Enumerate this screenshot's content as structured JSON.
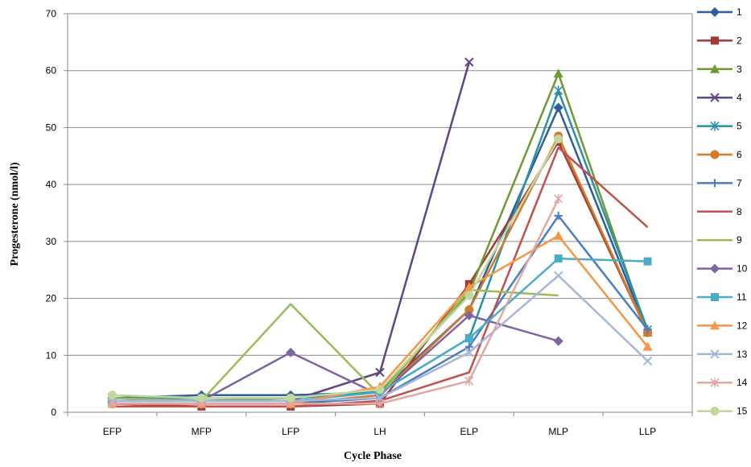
{
  "chart_data": {
    "type": "line",
    "title": "",
    "xlabel": "Cycle Phase",
    "ylabel": "Progesterone (nmol/l)",
    "ylim": [
      0,
      70
    ],
    "yticks": [
      "0",
      "10",
      "20",
      "30",
      "40",
      "50",
      "60",
      "70"
    ],
    "categories": [
      "EFP",
      "MFP",
      "LFP",
      "LH",
      "ELP",
      "MLP",
      "LLP"
    ],
    "grid": true,
    "legend_position": "right",
    "series": [
      {
        "name": "1",
        "color": "#2E5C9E",
        "marker": "diamond",
        "values": [
          2.5,
          3.0,
          3.0,
          3.5,
          18.0,
          53.5,
          14.0
        ]
      },
      {
        "name": "2",
        "color": "#A33A34",
        "marker": "square",
        "values": [
          1.5,
          1.0,
          1.0,
          1.5,
          22.5,
          47.5,
          14.0
        ]
      },
      {
        "name": "3",
        "color": "#6E9A34",
        "marker": "triangle",
        "values": [
          2.5,
          2.0,
          2.5,
          3.5,
          21.0,
          59.5,
          14.0
        ]
      },
      {
        "name": "4",
        "color": "#5E4685",
        "marker": "x",
        "values": [
          2.0,
          2.0,
          2.0,
          7.0,
          61.5,
          null,
          null
        ]
      },
      {
        "name": "5",
        "color": "#2B8FA6",
        "marker": "star",
        "values": [
          2.5,
          2.5,
          2.5,
          3.5,
          13.0,
          56.5,
          14.5
        ]
      },
      {
        "name": "6",
        "color": "#D37B2D",
        "marker": "circle",
        "values": [
          1.5,
          1.5,
          1.5,
          3.0,
          18.0,
          48.5,
          14.0
        ]
      },
      {
        "name": "7",
        "color": "#4A7CC2",
        "marker": "plus",
        "values": [
          1.5,
          1.5,
          1.5,
          2.5,
          11.5,
          34.5,
          14.5
        ]
      },
      {
        "name": "8",
        "color": "#C0504D",
        "marker": "line",
        "values": [
          1.0,
          1.0,
          1.0,
          2.0,
          7.0,
          46.5,
          32.5
        ]
      },
      {
        "name": "9",
        "color": "#9BBB59",
        "marker": "line",
        "values": [
          2.5,
          2.0,
          19.0,
          3.0,
          21.5,
          20.5,
          null
        ]
      },
      {
        "name": "10",
        "color": "#8064A2",
        "marker": "diamond",
        "values": [
          2.0,
          2.0,
          10.5,
          3.0,
          17.0,
          12.5,
          null
        ]
      },
      {
        "name": "11",
        "color": "#4BACC6",
        "marker": "square",
        "values": [
          2.0,
          2.0,
          2.0,
          3.5,
          13.0,
          27.0,
          26.5
        ]
      },
      {
        "name": "12",
        "color": "#F79646",
        "marker": "triangle",
        "values": [
          1.5,
          1.5,
          1.5,
          4.5,
          22.0,
          31.0,
          11.5
        ]
      },
      {
        "name": "13",
        "color": "#A5B6DA",
        "marker": "x",
        "values": [
          2.0,
          2.0,
          2.0,
          2.5,
          10.5,
          24.0,
          9.0
        ]
      },
      {
        "name": "14",
        "color": "#E2A7A4",
        "marker": "star",
        "values": [
          1.5,
          1.5,
          1.5,
          1.5,
          5.5,
          37.5,
          null
        ]
      },
      {
        "name": "15",
        "color": "#C3D69B",
        "marker": "circle",
        "values": [
          3.0,
          2.5,
          2.5,
          4.0,
          20.5,
          48.0,
          null
        ]
      }
    ]
  }
}
